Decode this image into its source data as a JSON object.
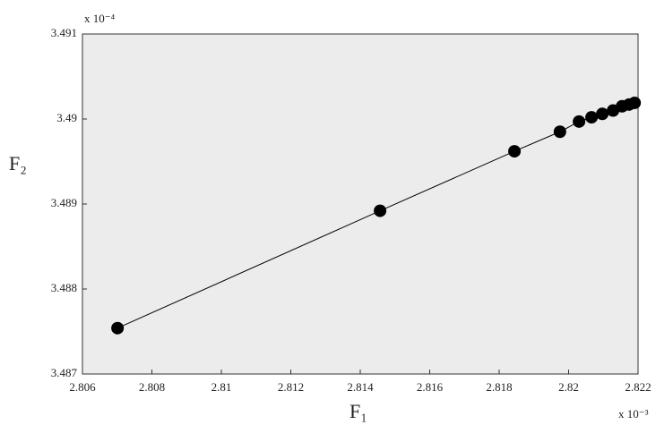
{
  "chart_data": {
    "type": "scatter",
    "connect": true,
    "xlabel": "F₁",
    "ylabel": "F₂",
    "x_multiplier": "x 10⁻³",
    "y_multiplier": "x 10⁻⁴",
    "x": [
      2.80701,
      2.81457,
      2.81844,
      2.81975,
      2.8203,
      2.82066,
      2.82097,
      2.82128,
      2.82154,
      2.82174,
      2.8219
    ],
    "values": [
      3.48754,
      3.48892,
      3.48962,
      3.48985,
      3.48997,
      3.49002,
      3.49006,
      3.4901,
      3.49015,
      3.49017,
      3.49019
    ],
    "color": "#000000",
    "xlim": [
      2.806,
      2.822
    ],
    "xticks": [
      2.806,
      2.808,
      2.81,
      2.812,
      2.814,
      2.816,
      2.818,
      2.82,
      2.822
    ],
    "ylim": [
      3.487,
      3.491
    ],
    "yticks": [
      3.487,
      3.488,
      3.489,
      3.49,
      3.491
    ]
  }
}
